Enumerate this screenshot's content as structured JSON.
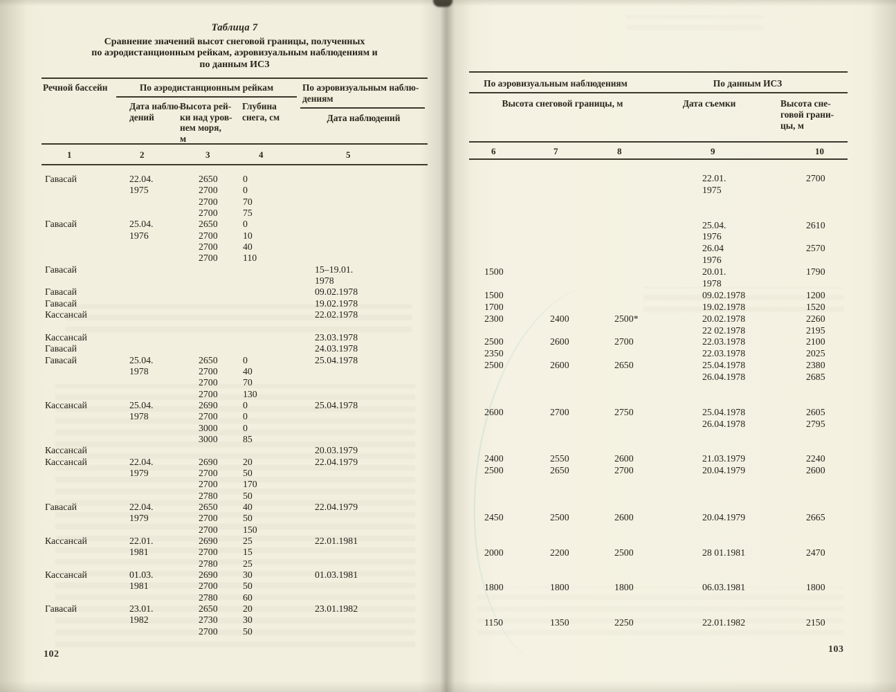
{
  "colors": {
    "paper": "#f2efdf",
    "ink": "#27241b"
  },
  "book": {
    "caption": "Таблица 7",
    "title": "Сравнение значений высот снеговой границы, полученных\nпо аэродистанционным рейкам, аэровизуальным наблюдениям и\nпо данным ИСЗ"
  },
  "page_left": {
    "page_number": "102",
    "header": {
      "col_basin": "Речной бассейн",
      "group_rakes": "По аэродистанционным рейкам",
      "col_date_obs": "Дата наблю-\nдений",
      "col_rake_height": "Высота рей-\nки над уров-\nнем моря,\nм",
      "col_snow_depth": "Глубина\nснега, см",
      "group_aerovisual": "По аэровизуальным наблю-\nдениям",
      "col_date_obs2": "Дата наблюдений"
    },
    "column_numbers": [
      "1",
      "2",
      "3",
      "4",
      "5"
    ],
    "rows": [
      [
        "Гавасай",
        "22.04.",
        "2650",
        "0",
        ""
      ],
      [
        "",
        "1975",
        "2700",
        "0",
        ""
      ],
      [
        "",
        "",
        "2700",
        "70",
        ""
      ],
      [
        "",
        "",
        "2700",
        "75",
        ""
      ],
      [
        "Гавасай",
        "25.04.",
        "2650",
        "0",
        ""
      ],
      [
        "",
        "1976",
        "2700",
        "10",
        ""
      ],
      [
        "",
        "",
        "2700",
        "40",
        ""
      ],
      [
        "",
        "",
        "2700",
        "110",
        ""
      ],
      [
        "Гавасай",
        "",
        "",
        "",
        "15–19.01."
      ],
      [
        "",
        "",
        "",
        "",
        "1978"
      ],
      [
        "Гавасай",
        "",
        "",
        "",
        "09.02.1978"
      ],
      [
        "Гавасай",
        "",
        "",
        "",
        "19.02.1978"
      ],
      [
        "Кассансай",
        "",
        "",
        "",
        "22.02.1978"
      ],
      [
        "",
        "",
        "",
        "",
        ""
      ],
      [
        "Кассансай",
        "",
        "",
        "",
        "23.03.1978"
      ],
      [
        "Гавасай",
        "",
        "",
        "",
        "24.03.1978"
      ],
      [
        "Гавасай",
        "25.04.",
        "2650",
        "0",
        "25.04.1978"
      ],
      [
        "",
        "1978",
        "2700",
        "40",
        ""
      ],
      [
        "",
        "",
        "2700",
        "70",
        ""
      ],
      [
        "",
        "",
        "2700",
        "130",
        ""
      ],
      [
        "Кассансай",
        "25.04.",
        "2690",
        "0",
        "25.04.1978"
      ],
      [
        "",
        "1978",
        "2700",
        "0",
        ""
      ],
      [
        "",
        "",
        "3000",
        "0",
        ""
      ],
      [
        "",
        "",
        "3000",
        "85",
        ""
      ],
      [
        "Кассансай",
        "",
        "",
        "",
        "20.03.1979"
      ],
      [
        "Кассансай",
        "22.04.",
        "2690",
        "20",
        "22.04.1979"
      ],
      [
        "",
        "1979",
        "2700",
        "50",
        ""
      ],
      [
        "",
        "",
        "2700",
        "170",
        ""
      ],
      [
        "",
        "",
        "2780",
        "50",
        ""
      ],
      [
        "Гавасай",
        "22.04.",
        "2650",
        "40",
        "22.04.1979"
      ],
      [
        "",
        "1979",
        "2700",
        "50",
        ""
      ],
      [
        "",
        "",
        "2700",
        "150",
        ""
      ],
      [
        "Кассансай",
        "22.01.",
        "2690",
        "25",
        "22.01.1981"
      ],
      [
        "",
        "1981",
        "2700",
        "15",
        ""
      ],
      [
        "",
        "",
        "2780",
        "25",
        ""
      ],
      [
        "Кассансай",
        "01.03.",
        "2690",
        "30",
        "01.03.1981"
      ],
      [
        "",
        "1981",
        "2700",
        "50",
        ""
      ],
      [
        "",
        "",
        "2780",
        "60",
        ""
      ],
      [
        "Гавасай",
        "23.01.",
        "2650",
        "20",
        "23.01.1982"
      ],
      [
        "",
        "1982",
        "2730",
        "30",
        ""
      ],
      [
        "",
        "",
        "2700",
        "50",
        ""
      ]
    ]
  },
  "page_right": {
    "page_number": "103",
    "header": {
      "group_aerovisual": "По аэровизуальным наблюдениям",
      "col_snowline_height": "Высота снеговой границы, м",
      "group_satellite": "По данным ИСЗ",
      "col_survey_date": "Дата съемки",
      "col_height": "Высота сне-\nговой грани-\nцы, м"
    },
    "column_numbers": [
      "6",
      "7",
      "8",
      "9",
      "10"
    ],
    "rows": [
      [
        "",
        "",
        "",
        "22.01.",
        "2700"
      ],
      [
        "",
        "",
        "",
        "1975",
        ""
      ],
      [
        "",
        "",
        "",
        "",
        ""
      ],
      [
        "",
        "",
        "",
        "",
        ""
      ],
      [
        "",
        "",
        "",
        "25.04.",
        "2610"
      ],
      [
        "",
        "",
        "",
        "1976",
        ""
      ],
      [
        "",
        "",
        "",
        "26.04",
        "2570"
      ],
      [
        "",
        "",
        "",
        "1976",
        ""
      ],
      [
        "1500",
        "",
        "",
        "20.01.",
        "1790"
      ],
      [
        "",
        "",
        "",
        "1978",
        ""
      ],
      [
        "1500",
        "",
        "",
        "09.02.1978",
        "1200"
      ],
      [
        "1700",
        "",
        "",
        "19.02.1978",
        "1520"
      ],
      [
        "2300",
        "2400",
        "2500*",
        "20.02.1978",
        "2260"
      ],
      [
        "",
        "",
        "",
        "22 02.1978",
        "2195"
      ],
      [
        "2500",
        "2600",
        "2700",
        "22.03.1978",
        "2100"
      ],
      [
        "2350",
        "",
        "",
        "22.03.1978",
        "2025"
      ],
      [
        "2500",
        "2600",
        "2650",
        "25.04.1978",
        "2380"
      ],
      [
        "",
        "",
        "",
        "26.04.1978",
        "2685"
      ],
      [
        "",
        "",
        "",
        "",
        ""
      ],
      [
        "",
        "",
        "",
        "",
        ""
      ],
      [
        "2600",
        "2700",
        "2750",
        "25.04.1978",
        "2605"
      ],
      [
        "",
        "",
        "",
        "26.04.1978",
        "2795"
      ],
      [
        "",
        "",
        "",
        "",
        ""
      ],
      [
        "",
        "",
        "",
        "",
        ""
      ],
      [
        "2400",
        "2550",
        "2600",
        "21.03.1979",
        "2240"
      ],
      [
        "2500",
        "2650",
        "2700",
        "20.04.1979",
        "2600"
      ],
      [
        "",
        "",
        "",
        "",
        ""
      ],
      [
        "",
        "",
        "",
        "",
        ""
      ],
      [
        "",
        "",
        "",
        "",
        ""
      ],
      [
        "2450",
        "2500",
        "2600",
        "20.04.1979",
        "2665"
      ],
      [
        "",
        "",
        "",
        "",
        ""
      ],
      [
        "",
        "",
        "",
        "",
        ""
      ],
      [
        "2000",
        "2200",
        "2500",
        "28 01.1981",
        "2470"
      ],
      [
        "",
        "",
        "",
        "",
        ""
      ],
      [
        "",
        "",
        "",
        "",
        ""
      ],
      [
        "1800",
        "1800",
        "1800",
        "06.03.1981",
        "1800"
      ],
      [
        "",
        "",
        "",
        "",
        ""
      ],
      [
        "",
        "",
        "",
        "",
        ""
      ],
      [
        "1150",
        "1350",
        "2250",
        "22.01.1982",
        "2150"
      ]
    ]
  }
}
